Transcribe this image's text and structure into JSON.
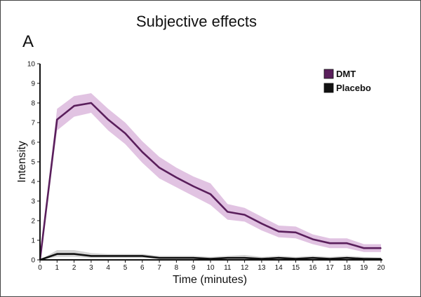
{
  "header": {
    "title": "Subjective effects",
    "panel": "A"
  },
  "chart_data": {
    "type": "line",
    "title": "Subjective effects",
    "xlabel": "Time (minutes)",
    "ylabel": "Intensity",
    "xlim": [
      0,
      20
    ],
    "ylim": [
      0,
      10
    ],
    "x": [
      0,
      1,
      2,
      3,
      4,
      5,
      6,
      7,
      8,
      9,
      10,
      11,
      12,
      13,
      14,
      15,
      16,
      17,
      18,
      19,
      20
    ],
    "x_ticks": [
      0,
      1,
      2,
      3,
      4,
      5,
      6,
      7,
      8,
      9,
      10,
      11,
      12,
      13,
      14,
      15,
      16,
      17,
      18,
      19,
      20
    ],
    "y_ticks": [
      0,
      1,
      2,
      3,
      4,
      5,
      6,
      7,
      8,
      9,
      10
    ],
    "grid": false,
    "legend_position": "top-right",
    "series": [
      {
        "name": "DMT",
        "color": "#5a1f5c",
        "band_color": "#dcb8dd",
        "values": [
          0,
          7.15,
          7.85,
          8.0,
          7.15,
          6.45,
          5.5,
          4.7,
          4.2,
          3.75,
          3.35,
          2.45,
          2.3,
          1.85,
          1.45,
          1.4,
          1.05,
          0.85,
          0.85,
          0.6,
          0.6
        ],
        "lower": [
          0,
          6.6,
          7.3,
          7.5,
          6.6,
          5.9,
          4.95,
          4.15,
          3.7,
          3.25,
          2.8,
          2.05,
          1.95,
          1.5,
          1.15,
          1.1,
          0.8,
          0.6,
          0.6,
          0.4,
          0.4
        ],
        "upper": [
          0,
          7.7,
          8.35,
          8.5,
          7.7,
          7.0,
          6.05,
          5.25,
          4.7,
          4.25,
          3.9,
          2.85,
          2.65,
          2.2,
          1.75,
          1.7,
          1.3,
          1.1,
          1.1,
          0.8,
          0.8
        ]
      },
      {
        "name": "Placebo",
        "color": "#111111",
        "band_color": "#cccccc",
        "values": [
          0,
          0.3,
          0.3,
          0.2,
          0.2,
          0.2,
          0.2,
          0.1,
          0.1,
          0.1,
          0.05,
          0.1,
          0.1,
          0.05,
          0.1,
          0.05,
          0.1,
          0.05,
          0.1,
          0.05,
          0.05
        ],
        "lower": [
          0,
          0.15,
          0.15,
          0.1,
          0.1,
          0.1,
          0.1,
          0.05,
          0.05,
          0.05,
          0.0,
          0.05,
          0.05,
          0.0,
          0.05,
          0.0,
          0.05,
          0.0,
          0.05,
          0.0,
          0.0
        ],
        "upper": [
          0,
          0.5,
          0.5,
          0.35,
          0.3,
          0.3,
          0.3,
          0.2,
          0.2,
          0.2,
          0.15,
          0.2,
          0.25,
          0.15,
          0.2,
          0.15,
          0.2,
          0.15,
          0.2,
          0.15,
          0.1
        ]
      }
    ]
  }
}
